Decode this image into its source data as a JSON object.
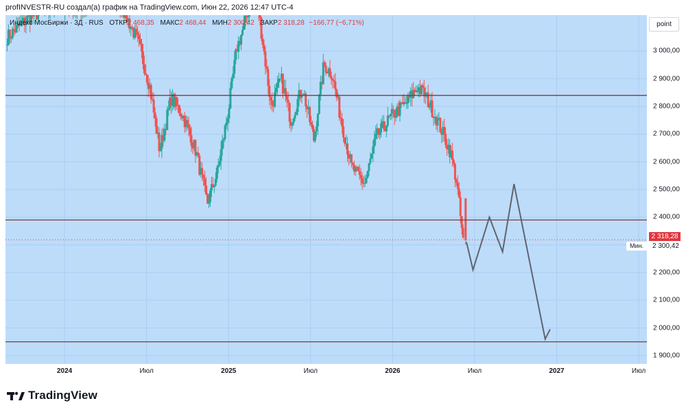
{
  "caption": "profINVESTR-RU создал(а) график на TradingView.com, Июн 22, 2026 12:47 UTC-4",
  "legend": {
    "symbol": "Индекс МосБиржи · 3Д · RUS",
    "open_label": "ОТКР",
    "open": "2 468,35",
    "high_label": "МАКС",
    "high": "2 468,44",
    "low_label": "МИН",
    "low": "2 300,42",
    "close_label": "ЗАКР",
    "close": "2 318,28",
    "change": "−166,77 (−6,71%)"
  },
  "unit_button": "point",
  "last_price_badge": "2 318,28",
  "min_tag": "Мин.",
  "min_value": "2 300,42",
  "brand": "TradingView",
  "colors": {
    "background": "#bddcfa",
    "up": "#26a69a",
    "down": "#ef5350",
    "level_line": "#7a3a3a",
    "projection": "#5d6470",
    "last_price": "#e0383e"
  },
  "chart_data": {
    "type": "candlestick",
    "symbol": "Индекс МосБиржи",
    "timeframe": "3Д",
    "ylim": [
      1870,
      3130
    ],
    "y_ticks": [
      1900,
      2000,
      2100,
      2200,
      2300,
      2400,
      2500,
      2600,
      2700,
      2800,
      2900,
      3000
    ],
    "y_tick_labels": [
      "1 900,00",
      "2 000,00",
      "2 100,00",
      "2 200,00",
      "2 300,00",
      "2 400,00",
      "2 500,00",
      "2 600,00",
      "2 700,00",
      "2 800,00",
      "2 900,00",
      "3 000,00"
    ],
    "x_ticks": [
      {
        "label": "2024",
        "t": 2024.0,
        "year": true
      },
      {
        "label": "Июл",
        "t": 2024.5,
        "year": false
      },
      {
        "label": "2025",
        "t": 2025.0,
        "year": true
      },
      {
        "label": "Июл",
        "t": 2025.5,
        "year": false
      },
      {
        "label": "2026",
        "t": 2026.0,
        "year": true
      },
      {
        "label": "Июл",
        "t": 2026.5,
        "year": false
      },
      {
        "label": "2027",
        "t": 2027.0,
        "year": true
      },
      {
        "label": "Июл",
        "t": 2027.5,
        "year": false
      }
    ],
    "x_range": [
      2023.64,
      2027.55
    ],
    "horizontal_levels": [
      2840,
      2390,
      1950
    ],
    "last_price": 2318.28,
    "anchors": [
      [
        2023.65,
        3050
      ],
      [
        2023.78,
        3120
      ],
      [
        2023.95,
        3170
      ],
      [
        2024.08,
        3150
      ],
      [
        2024.25,
        3200
      ],
      [
        2024.35,
        3160
      ],
      [
        2024.45,
        3030
      ],
      [
        2024.52,
        2870
      ],
      [
        2024.58,
        2640
      ],
      [
        2024.65,
        2830
      ],
      [
        2024.72,
        2770
      ],
      [
        2024.8,
        2640
      ],
      [
        2024.87,
        2450
      ],
      [
        2024.93,
        2560
      ],
      [
        2025.0,
        2790
      ],
      [
        2025.05,
        3010
      ],
      [
        2025.1,
        3100
      ],
      [
        2025.16,
        3240
      ],
      [
        2025.2,
        3070
      ],
      [
        2025.26,
        2800
      ],
      [
        2025.32,
        2900
      ],
      [
        2025.38,
        2750
      ],
      [
        2025.45,
        2870
      ],
      [
        2025.52,
        2680
      ],
      [
        2025.58,
        2950
      ],
      [
        2025.63,
        2920
      ],
      [
        2025.68,
        2770
      ],
      [
        2025.75,
        2580
      ],
      [
        2025.83,
        2520
      ],
      [
        2025.9,
        2690
      ],
      [
        2026.0,
        2770
      ],
      [
        2026.08,
        2810
      ],
      [
        2026.15,
        2870
      ],
      [
        2026.2,
        2840
      ],
      [
        2026.28,
        2740
      ],
      [
        2026.35,
        2640
      ],
      [
        2026.39,
        2530
      ],
      [
        2026.43,
        2310
      ]
    ],
    "projection": [
      [
        2026.45,
        2310
      ],
      [
        2026.49,
        2210
      ],
      [
        2026.59,
        2400
      ],
      [
        2026.67,
        2275
      ],
      [
        2026.74,
        2520
      ],
      [
        2026.93,
        1960
      ],
      [
        2026.96,
        1995
      ]
    ]
  }
}
